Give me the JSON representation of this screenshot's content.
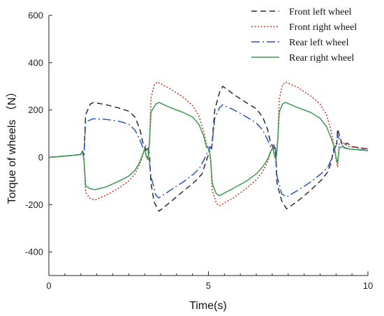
{
  "chart_data": {
    "type": "line",
    "xlabel": "Time(s)",
    "ylabel": "Torque of wheels （N）",
    "xlim": [
      0,
      10
    ],
    "ylim": [
      -500,
      600
    ],
    "x_ticks": [
      0,
      5,
      10
    ],
    "y_ticks": [
      600,
      400,
      200,
      0,
      -200,
      -400
    ],
    "grid": false,
    "legend_position": "top-right",
    "series": [
      {
        "name": "Front left wheel",
        "color": "#2b2b2b",
        "dash": "8,5",
        "points": [
          [
            0,
            0
          ],
          [
            0.5,
            5
          ],
          [
            1.0,
            12
          ],
          [
            1.05,
            28
          ],
          [
            1.1,
            10
          ],
          [
            1.15,
            180
          ],
          [
            1.3,
            225
          ],
          [
            1.4,
            232
          ],
          [
            1.8,
            222
          ],
          [
            2.2,
            208
          ],
          [
            2.5,
            195
          ],
          [
            2.7,
            170
          ],
          [
            2.85,
            120
          ],
          [
            2.95,
            60
          ],
          [
            3.05,
            30
          ],
          [
            3.1,
            45
          ],
          [
            3.15,
            15
          ],
          [
            3.2,
            -110
          ],
          [
            3.3,
            -190
          ],
          [
            3.45,
            -228
          ],
          [
            3.8,
            -190
          ],
          [
            4.2,
            -145
          ],
          [
            4.6,
            -100
          ],
          [
            4.8,
            -70
          ],
          [
            4.92,
            -20
          ],
          [
            5.0,
            10
          ],
          [
            5.05,
            50
          ],
          [
            5.1,
            35
          ],
          [
            5.2,
            200
          ],
          [
            5.35,
            275
          ],
          [
            5.45,
            300
          ],
          [
            5.8,
            265
          ],
          [
            6.2,
            230
          ],
          [
            6.5,
            205
          ],
          [
            6.7,
            170
          ],
          [
            6.85,
            120
          ],
          [
            6.95,
            60
          ],
          [
            7.05,
            40
          ],
          [
            7.1,
            30
          ],
          [
            7.15,
            -110
          ],
          [
            7.3,
            -185
          ],
          [
            7.45,
            -218
          ],
          [
            7.8,
            -185
          ],
          [
            8.2,
            -140
          ],
          [
            8.55,
            -95
          ],
          [
            8.75,
            -60
          ],
          [
            8.85,
            -20
          ],
          [
            8.92,
            30
          ],
          [
            8.97,
            60
          ],
          [
            9.02,
            55
          ],
          [
            9.05,
            120
          ],
          [
            9.1,
            95
          ],
          [
            9.2,
            50
          ],
          [
            9.35,
            60
          ],
          [
            9.5,
            45
          ],
          [
            10,
            35
          ]
        ]
      },
      {
        "name": "Front right wheel",
        "color": "#c8321e",
        "dash": "2,2.5",
        "points": [
          [
            0,
            0
          ],
          [
            0.5,
            5
          ],
          [
            1.0,
            12
          ],
          [
            1.05,
            28
          ],
          [
            1.1,
            -15
          ],
          [
            1.15,
            -150
          ],
          [
            1.3,
            -175
          ],
          [
            1.45,
            -180
          ],
          [
            1.8,
            -160
          ],
          [
            2.2,
            -130
          ],
          [
            2.5,
            -100
          ],
          [
            2.7,
            -70
          ],
          [
            2.85,
            -30
          ],
          [
            2.95,
            10
          ],
          [
            3.0,
            40
          ],
          [
            3.05,
            10
          ],
          [
            3.1,
            -5
          ],
          [
            3.15,
            60
          ],
          [
            3.2,
            250
          ],
          [
            3.3,
            305
          ],
          [
            3.4,
            318
          ],
          [
            3.8,
            290
          ],
          [
            4.2,
            255
          ],
          [
            4.5,
            220
          ],
          [
            4.7,
            175
          ],
          [
            4.85,
            110
          ],
          [
            4.95,
            50
          ],
          [
            5.02,
            40
          ],
          [
            5.07,
            -20
          ],
          [
            5.12,
            -140
          ],
          [
            5.25,
            -195
          ],
          [
            5.35,
            -205
          ],
          [
            5.8,
            -170
          ],
          [
            6.2,
            -130
          ],
          [
            6.5,
            -95
          ],
          [
            6.7,
            -60
          ],
          [
            6.85,
            -20
          ],
          [
            6.95,
            20
          ],
          [
            7.02,
            50
          ],
          [
            7.07,
            10
          ],
          [
            7.12,
            -5
          ],
          [
            7.17,
            70
          ],
          [
            7.22,
            245
          ],
          [
            7.32,
            305
          ],
          [
            7.42,
            318
          ],
          [
            7.8,
            295
          ],
          [
            8.2,
            260
          ],
          [
            8.5,
            225
          ],
          [
            8.7,
            180
          ],
          [
            8.85,
            110
          ],
          [
            8.95,
            40
          ],
          [
            9.0,
            -10
          ],
          [
            9.05,
            -40
          ],
          [
            9.1,
            60
          ],
          [
            9.2,
            65
          ],
          [
            9.4,
            45
          ],
          [
            10,
            35
          ]
        ]
      },
      {
        "name": "Rear left wheel",
        "color": "#2a55c9",
        "dash": "12,4,2,4",
        "points": [
          [
            0,
            0
          ],
          [
            0.5,
            5
          ],
          [
            1.0,
            12
          ],
          [
            1.05,
            24
          ],
          [
            1.1,
            5
          ],
          [
            1.15,
            150
          ],
          [
            1.3,
            158
          ],
          [
            1.4,
            163
          ],
          [
            1.8,
            160
          ],
          [
            2.2,
            152
          ],
          [
            2.5,
            140
          ],
          [
            2.7,
            115
          ],
          [
            2.85,
            75
          ],
          [
            2.95,
            40
          ],
          [
            3.05,
            50
          ],
          [
            3.1,
            40
          ],
          [
            3.2,
            -80
          ],
          [
            3.35,
            -160
          ],
          [
            3.45,
            -172
          ],
          [
            3.8,
            -140
          ],
          [
            4.2,
            -105
          ],
          [
            4.55,
            -70
          ],
          [
            4.75,
            -40
          ],
          [
            4.9,
            0
          ],
          [
            5.0,
            30
          ],
          [
            5.05,
            45
          ],
          [
            5.1,
            35
          ],
          [
            5.2,
            165
          ],
          [
            5.35,
            210
          ],
          [
            5.45,
            222
          ],
          [
            5.8,
            200
          ],
          [
            6.2,
            170
          ],
          [
            6.5,
            145
          ],
          [
            6.7,
            115
          ],
          [
            6.85,
            75
          ],
          [
            6.95,
            45
          ],
          [
            7.05,
            52
          ],
          [
            7.1,
            38
          ],
          [
            7.15,
            -80
          ],
          [
            7.3,
            -155
          ],
          [
            7.45,
            -168
          ],
          [
            7.8,
            -140
          ],
          [
            8.2,
            -105
          ],
          [
            8.55,
            -68
          ],
          [
            8.75,
            -40
          ],
          [
            8.88,
            0
          ],
          [
            8.95,
            30
          ],
          [
            9.0,
            50
          ],
          [
            9.05,
            95
          ],
          [
            9.12,
            70
          ],
          [
            9.25,
            40
          ],
          [
            9.4,
            35
          ],
          [
            10,
            30
          ]
        ]
      },
      {
        "name": "Rear right wheel",
        "color": "#3a9a52",
        "dash": "",
        "points": [
          [
            0,
            0
          ],
          [
            0.5,
            5
          ],
          [
            1.0,
            12
          ],
          [
            1.05,
            24
          ],
          [
            1.1,
            -10
          ],
          [
            1.15,
            -120
          ],
          [
            1.3,
            -133
          ],
          [
            1.45,
            -137
          ],
          [
            1.8,
            -125
          ],
          [
            2.2,
            -100
          ],
          [
            2.5,
            -80
          ],
          [
            2.7,
            -55
          ],
          [
            2.85,
            -20
          ],
          [
            2.95,
            15
          ],
          [
            3.0,
            35
          ],
          [
            3.05,
            5
          ],
          [
            3.1,
            -10
          ],
          [
            3.15,
            60
          ],
          [
            3.2,
            190
          ],
          [
            3.35,
            225
          ],
          [
            3.45,
            232
          ],
          [
            3.8,
            210
          ],
          [
            4.2,
            190
          ],
          [
            4.5,
            170
          ],
          [
            4.7,
            140
          ],
          [
            4.85,
            90
          ],
          [
            4.95,
            40
          ],
          [
            5.02,
            40
          ],
          [
            5.07,
            -10
          ],
          [
            5.12,
            -110
          ],
          [
            5.25,
            -155
          ],
          [
            5.35,
            -162
          ],
          [
            5.8,
            -130
          ],
          [
            6.2,
            -100
          ],
          [
            6.5,
            -70
          ],
          [
            6.7,
            -40
          ],
          [
            6.85,
            -10
          ],
          [
            6.95,
            25
          ],
          [
            7.02,
            40
          ],
          [
            7.07,
            5
          ],
          [
            7.12,
            -10
          ],
          [
            7.17,
            65
          ],
          [
            7.22,
            190
          ],
          [
            7.32,
            225
          ],
          [
            7.42,
            232
          ],
          [
            7.8,
            210
          ],
          [
            8.2,
            190
          ],
          [
            8.5,
            165
          ],
          [
            8.7,
            130
          ],
          [
            8.85,
            80
          ],
          [
            8.95,
            40
          ],
          [
            9.0,
            0
          ],
          [
            9.05,
            -25
          ],
          [
            9.1,
            40
          ],
          [
            9.2,
            45
          ],
          [
            9.4,
            35
          ],
          [
            10,
            28
          ]
        ]
      }
    ]
  }
}
